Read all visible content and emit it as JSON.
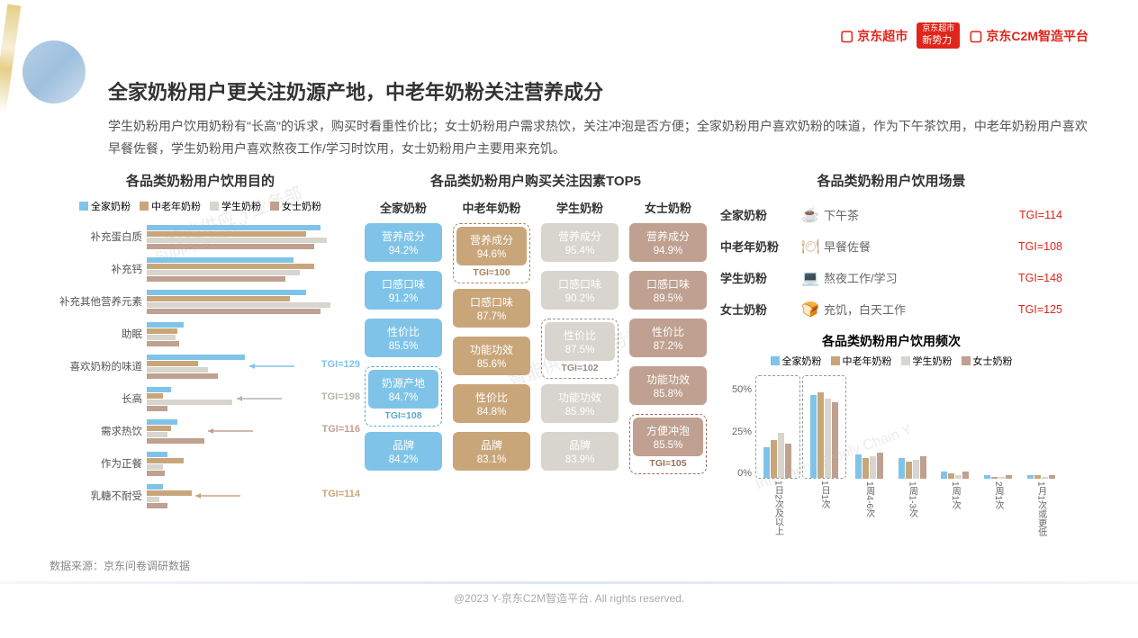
{
  "header": {
    "logo1": "京东超市",
    "logo2_top": "京东超市",
    "logo2_bottom": "新势力",
    "logo3": "京东C2M智造平台"
  },
  "title": "全家奶粉用户更关注奶源产地，中老年奶粉关注营养成分",
  "description": "学生奶粉用户饮用奶粉有\"长高\"的诉求，购买时看重性价比；女士奶粉用户需求热饮，关注冲泡是否方便；全家奶粉用户喜欢奶粉的味道，作为下午茶饮用，中老年奶粉用户喜欢早餐佐餐，学生奶粉用户喜欢熬夜工作/学习时饮用，女士奶粉用户主要用来充饥。",
  "data_source": "数据来源：京东问卷调研数据",
  "footer": "@2023 Y-京东C2M智造平台. All rights reserved.",
  "legend": {
    "series": [
      {
        "name": "全家奶粉",
        "color": "#7fc4e8"
      },
      {
        "name": "中老年奶粉",
        "color": "#c9a67a"
      },
      {
        "name": "学生奶粉",
        "color": "#d8d4ce"
      },
      {
        "name": "女士奶粉",
        "color": "#c0a090"
      }
    ]
  },
  "hbar": {
    "title": "各品类奶粉用户饮用目的",
    "max_value": 100,
    "categories": [
      {
        "label": "补充蛋白质",
        "values": [
          85,
          78,
          88,
          82
        ]
      },
      {
        "label": "补充钙",
        "values": [
          72,
          82,
          75,
          68
        ]
      },
      {
        "label": "补充其他营养元素",
        "values": [
          78,
          70,
          90,
          85
        ]
      },
      {
        "label": "助眠",
        "values": [
          18,
          15,
          14,
          16
        ]
      },
      {
        "label": "喜欢奶粉的味道",
        "values": [
          48,
          25,
          30,
          35
        ],
        "tgi": "TGI=129",
        "tgi_color": "#7fc4e8",
        "arrow_to": 0
      },
      {
        "label": "长高",
        "values": [
          12,
          8,
          42,
          10
        ],
        "tgi": "TGI=198",
        "tgi_color": "#b8b4ae",
        "arrow_to": 2
      },
      {
        "label": "需求热饮",
        "values": [
          15,
          12,
          10,
          28
        ],
        "tgi": "TGI=116",
        "tgi_color": "#c0a090",
        "arrow_to": 3
      },
      {
        "label": "作为正餐",
        "values": [
          10,
          18,
          8,
          9
        ]
      },
      {
        "label": "乳糖不耐受",
        "values": [
          8,
          22,
          6,
          10
        ],
        "tgi": "TGI=114",
        "tgi_color": "#c9a67a",
        "arrow_to": 1
      }
    ]
  },
  "factors": {
    "title": "各品类奶粉用户购买关注因素TOP5",
    "columns": [
      {
        "header": "全家奶粉",
        "color": "#7fc4e8",
        "tgi_color": "#5aa8d0",
        "items": [
          {
            "name": "营养成分",
            "value": "94.2%"
          },
          {
            "name": "口感口味",
            "value": "91.2%"
          },
          {
            "name": "性价比",
            "value": "85.5%"
          },
          {
            "name": "奶源产地",
            "value": "84.7%",
            "highlight": true,
            "tgi": "TGI=108"
          },
          {
            "name": "品牌",
            "value": "84.2%"
          }
        ]
      },
      {
        "header": "中老年奶粉",
        "color": "#c9a67a",
        "tgi_color": "#a8855a",
        "items": [
          {
            "name": "营养成分",
            "value": "94.6%",
            "highlight": true,
            "tgi": "TGI=100"
          },
          {
            "name": "口感口味",
            "value": "87.7%"
          },
          {
            "name": "功能功效",
            "value": "85.6%"
          },
          {
            "name": "性价比",
            "value": "84.8%"
          },
          {
            "name": "品牌",
            "value": "83.1%"
          }
        ]
      },
      {
        "header": "学生奶粉",
        "color": "#d8d4ce",
        "tgi_color": "#968e85",
        "items": [
          {
            "name": "营养成分",
            "value": "95.4%"
          },
          {
            "name": "口感口味",
            "value": "90.2%"
          },
          {
            "name": "性价比",
            "value": "87.5%",
            "highlight": true,
            "tgi": "TGI=102"
          },
          {
            "name": "功能功效",
            "value": "85.9%"
          },
          {
            "name": "品牌",
            "value": "83.9%"
          }
        ]
      },
      {
        "header": "女士奶粉",
        "color": "#c0a090",
        "tgi_color": "#98705d",
        "items": [
          {
            "name": "营养成分",
            "value": "94.9%"
          },
          {
            "name": "口感口味",
            "value": "89.5%"
          },
          {
            "name": "性价比",
            "value": "87.2%"
          },
          {
            "name": "功能功效",
            "value": "85.8%"
          },
          {
            "name": "方便冲泡",
            "value": "85.5%",
            "highlight": true,
            "tgi": "TGI=105"
          }
        ]
      }
    ]
  },
  "scenes": {
    "title": "各品类奶粉用户饮用场景",
    "rows": [
      {
        "label": "全家奶粉",
        "icon": "☕",
        "icon_color": "#c9a67a",
        "text": "下午茶",
        "tgi": "TGI=114"
      },
      {
        "label": "中老年奶粉",
        "icon": "🍽",
        "icon_color": "#c9a67a",
        "text": "早餐佐餐",
        "tgi": "TGI=108"
      },
      {
        "label": "学生奶粉",
        "icon": "💻",
        "icon_color": "#c9a67a",
        "text": "熬夜工作/学习",
        "tgi": "TGI=148"
      },
      {
        "label": "女士奶粉",
        "icon": "🍞",
        "icon_color": "#c9a67a",
        "text": "充饥，白天工作",
        "tgi": "TGI=125"
      }
    ]
  },
  "freq": {
    "title": "各品类奶粉用户饮用频次",
    "ylabels": [
      "50%",
      "25%",
      "0%"
    ],
    "ymax": 55,
    "categories": [
      {
        "label": "1日2次及以上",
        "values": [
          18,
          22,
          26,
          20
        ],
        "highlight": true
      },
      {
        "label": "1日1次",
        "values": [
          48,
          50,
          46,
          44
        ],
        "highlight": true
      },
      {
        "label": "1周4-6次",
        "values": [
          14,
          12,
          13,
          15
        ]
      },
      {
        "label": "1周1-3次",
        "values": [
          12,
          10,
          11,
          13
        ]
      },
      {
        "label": "1周1次",
        "values": [
          4,
          3,
          2,
          4
        ]
      },
      {
        "label": "2周1次",
        "values": [
          2,
          1,
          1,
          2
        ]
      },
      {
        "label": "1月1次或更低",
        "values": [
          2,
          2,
          1,
          2
        ]
      }
    ]
  },
  "watermarks": [
    "智能供应 Y业务部",
    "Supply Chain Y",
    "智能供应 Y业务部",
    "Intelligent Supply Chain Y"
  ]
}
